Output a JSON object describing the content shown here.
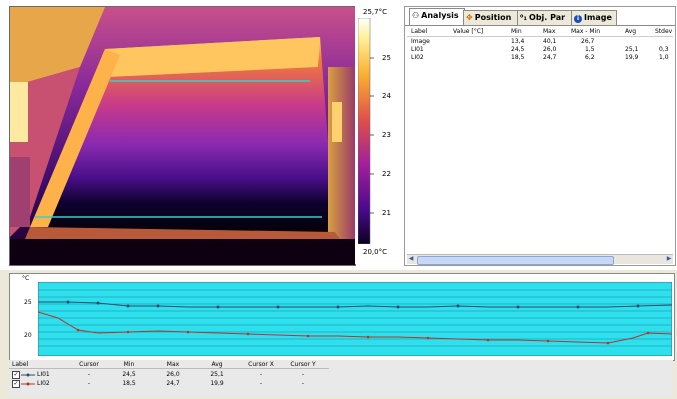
{
  "scale": {
    "max_label": "25,7°C",
    "min_label": "20,0°C",
    "ticks": [
      "25",
      "24",
      "23",
      "22",
      "21"
    ]
  },
  "tabs": [
    {
      "icon": "analysis-icon",
      "label": "Analysis"
    },
    {
      "icon": "position-icon",
      "label": "Position"
    },
    {
      "icon": "obj-par-icon",
      "label": "Obj. Par"
    },
    {
      "icon": "info-icon",
      "label": "Image"
    }
  ],
  "analysis_table": {
    "headers": [
      "Label",
      "Value [°C]",
      "Min",
      "Max",
      "Max - Min",
      "Avg",
      "Stdev"
    ],
    "rows": [
      [
        "Image",
        "",
        "13,4",
        "40,1",
        "26,7",
        "",
        ""
      ],
      [
        "LI01",
        "",
        "24,5",
        "26,0",
        "1,5",
        "25,1",
        "0,3"
      ],
      [
        "LI02",
        "",
        "18,5",
        "24,7",
        "6,2",
        "19,9",
        "1,0"
      ]
    ]
  },
  "profile": {
    "unit": "°C",
    "y_ticks": [
      "25",
      "20"
    ]
  },
  "legend": {
    "headers": [
      "Label",
      "Cursor",
      "Min",
      "Max",
      "Avg",
      "Cursor X",
      "Cursor Y"
    ],
    "rows": [
      {
        "label": "LI01",
        "cursor": "-",
        "min": "24,5",
        "max": "26,0",
        "avg": "25,1",
        "cx": "-",
        "cy": "-"
      },
      {
        "label": "LI02",
        "cursor": "-",
        "min": "18,5",
        "max": "24,7",
        "avg": "19,9",
        "cx": "-",
        "cy": "-"
      }
    ]
  },
  "colors": {
    "line1": "#2a7f8a",
    "line2": "#b8322a",
    "profile_bg": "#2ee0ee"
  }
}
